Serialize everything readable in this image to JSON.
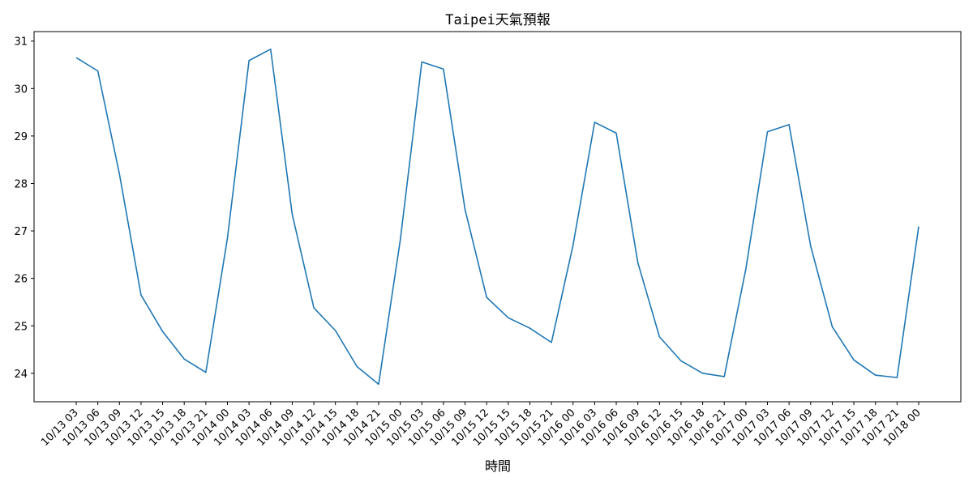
{
  "chart_data": {
    "type": "line",
    "title": "Taipei天氣預報",
    "xlabel": "時間",
    "ylabel": "",
    "ylim": [
      23.4,
      31.2
    ],
    "yticks": [
      24,
      25,
      26,
      27,
      28,
      29,
      30,
      31
    ],
    "grid": false,
    "legend": "none",
    "line_color": "#1f77b4",
    "categories": [
      "10/13 03",
      "10/13 06",
      "10/13 09",
      "10/13 12",
      "10/13 15",
      "10/13 18",
      "10/13 21",
      "10/14 00",
      "10/14 03",
      "10/14 06",
      "10/14 09",
      "10/14 12",
      "10/14 15",
      "10/14 18",
      "10/14 21",
      "10/15 00",
      "10/15 03",
      "10/15 06",
      "10/15 09",
      "10/15 12",
      "10/15 15",
      "10/15 18",
      "10/15 21",
      "10/16 00",
      "10/16 03",
      "10/16 06",
      "10/16 09",
      "10/16 12",
      "10/16 15",
      "10/16 18",
      "10/16 21",
      "10/17 00",
      "10/17 03",
      "10/17 06",
      "10/17 09",
      "10/17 12",
      "10/17 15",
      "10/17 18",
      "10/17 21",
      "10/18 00"
    ],
    "series": [
      {
        "values": [
          30.65,
          30.37,
          28.2,
          25.65,
          24.88,
          24.3,
          24.02,
          26.85,
          30.59,
          30.83,
          27.35,
          25.38,
          24.9,
          24.14,
          23.77,
          26.8,
          30.56,
          30.41,
          27.45,
          25.6,
          25.17,
          24.95,
          24.65,
          26.7,
          29.29,
          29.06,
          26.33,
          24.77,
          24.26,
          24.0,
          23.93,
          26.2,
          29.09,
          29.24,
          26.68,
          24.98,
          24.28,
          23.96,
          23.91,
          27.09
        ]
      }
    ]
  }
}
